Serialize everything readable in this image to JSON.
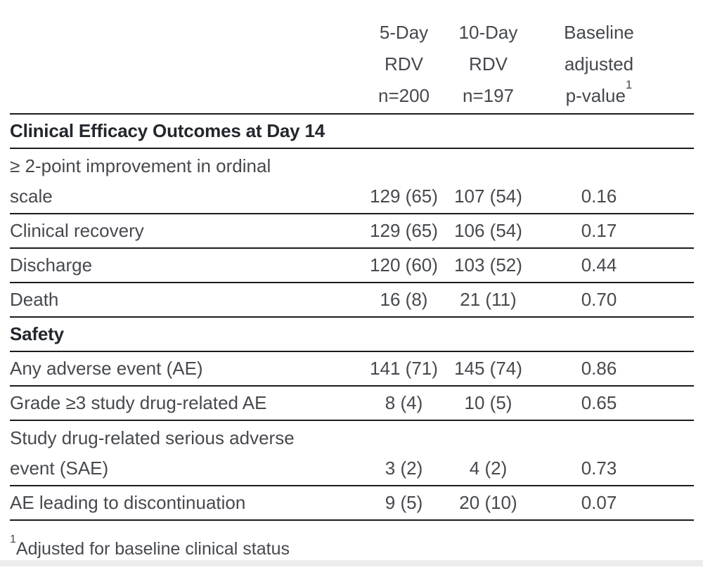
{
  "page": {
    "background_color": "#ffffff",
    "rule_color": "#1a1c1f",
    "body_text_color": "#46494e",
    "heading_text_color": "#23272d"
  },
  "table": {
    "header": {
      "col1": {
        "line1": "5-Day",
        "line2": "RDV",
        "line3": "n=200"
      },
      "col2": {
        "line1": "10-Day",
        "line2": "RDV",
        "line3": "n=197"
      },
      "col3": {
        "line1": "Baseline",
        "line2": "adjusted",
        "line3": "p-value",
        "sup": "1"
      }
    },
    "section1": {
      "title": "Clinical Efficacy Outcomes at Day 14",
      "row1": {
        "label_line1": "≥ 2-point improvement in ordinal",
        "label_line2": "scale",
        "v1": "129 (65)",
        "v2": "107 (54)",
        "p": "0.16"
      },
      "row2": {
        "label": "Clinical recovery",
        "v1": "129 (65)",
        "v2": "106 (54)",
        "p": "0.17"
      },
      "row3": {
        "label": "Discharge",
        "v1": "120 (60)",
        "v2": "103 (52)",
        "p": "0.44"
      },
      "row4": {
        "label": "Death",
        "v1": "16 (8)",
        "v2": "21 (11)",
        "p": "0.70"
      }
    },
    "section2": {
      "title": "Safety",
      "row1": {
        "label": "Any adverse event (AE)",
        "v1": "141 (71)",
        "v2": "145 (74)",
        "p": "0.86"
      },
      "row2": {
        "label": "Grade ≥3 study drug-related AE",
        "v1": "8 (4)",
        "v2": "10 (5)",
        "p": "0.65"
      },
      "row3": {
        "label_line1": "Study drug-related serious adverse",
        "label_line2": "event (SAE)",
        "v1": "3 (2)",
        "v2": "4 (2)",
        "p": "0.73"
      },
      "row4": {
        "label": "AE leading to discontinuation",
        "v1": "9 (5)",
        "v2": "20 (10)",
        "p": "0.07"
      }
    },
    "footnote": {
      "sup": "1",
      "text": "Adjusted for baseline clinical status"
    }
  },
  "chart_data": {
    "type": "table",
    "columns": [
      "",
      "5-Day RDV n=200",
      "10-Day RDV n=197",
      "Baseline adjusted p-value(1)"
    ],
    "sections": [
      {
        "header": "Clinical Efficacy Outcomes at Day 14",
        "rows": [
          [
            "≥ 2-point improvement in ordinal scale",
            "129 (65)",
            "107 (54)",
            "0.16"
          ],
          [
            "Clinical recovery",
            "129 (65)",
            "106 (54)",
            "0.17"
          ],
          [
            "Discharge",
            "120 (60)",
            "103 (52)",
            "0.44"
          ],
          [
            "Death",
            "16 (8)",
            "21 (11)",
            "0.70"
          ]
        ]
      },
      {
        "header": "Safety",
        "rows": [
          [
            "Any adverse event (AE)",
            "141 (71)",
            "145 (74)",
            "0.86"
          ],
          [
            "Grade ≥3 study drug-related AE",
            "8 (4)",
            "10 (5)",
            "0.65"
          ],
          [
            "Study drug-related serious adverse event (SAE)",
            "3 (2)",
            "4 (2)",
            "0.73"
          ],
          [
            "AE leading to discontinuation",
            "9 (5)",
            "20 (10)",
            "0.07"
          ]
        ]
      }
    ],
    "footnote": "(1) Adjusted for baseline clinical status"
  }
}
